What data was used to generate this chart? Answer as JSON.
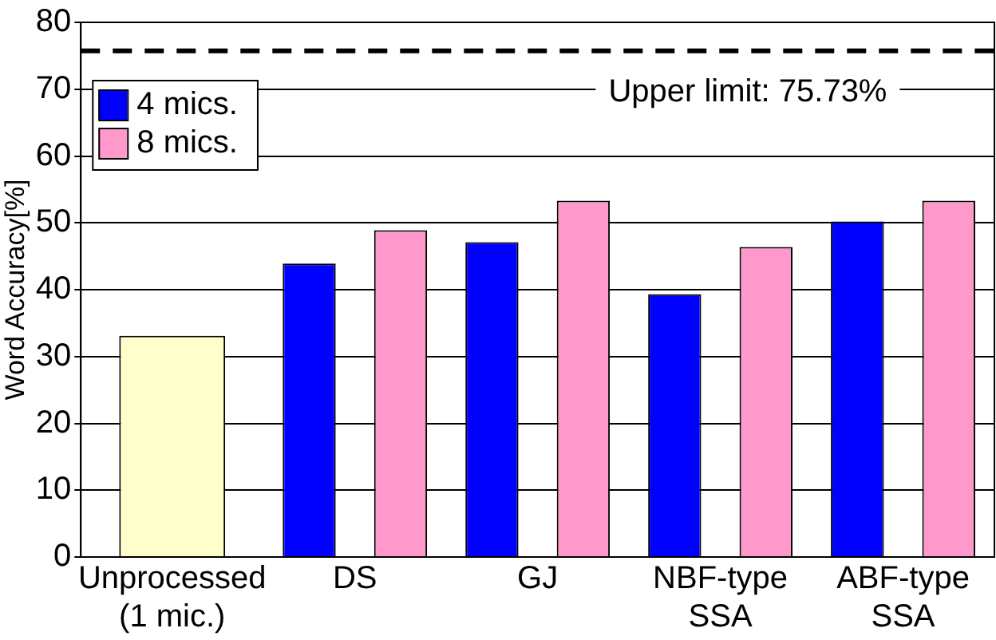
{
  "chart_data": {
    "type": "bar",
    "ylabel": "Word Accuracy[%]",
    "categories": [
      "Unprocessed\n(1 mic.)",
      "DS",
      "GJ",
      "NBF-type\nSSA",
      "ABF-type\nSSA"
    ],
    "series": [
      {
        "name": "4 mics.",
        "color": "#0000ff",
        "values": [
          null,
          43.9,
          47.1,
          39.3,
          50.2
        ]
      },
      {
        "name": "8 mics.",
        "color": "#ff99cc",
        "values": [
          null,
          48.9,
          53.3,
          46.4,
          53.3
        ]
      },
      {
        "color": "#ffffcc",
        "values": [
          33.1,
          null,
          null,
          null,
          null
        ]
      }
    ],
    "ylim": [
      0,
      80
    ],
    "yticks": [
      0,
      10,
      20,
      30,
      40,
      50,
      60,
      70,
      80
    ],
    "grid": "y",
    "legend": "top left",
    "ref_lines": [
      {
        "axis": "y",
        "value": 75.73,
        "label": "Upper limit: 75.73%",
        "color": "#000000",
        "line_style": "dashed"
      }
    ]
  }
}
